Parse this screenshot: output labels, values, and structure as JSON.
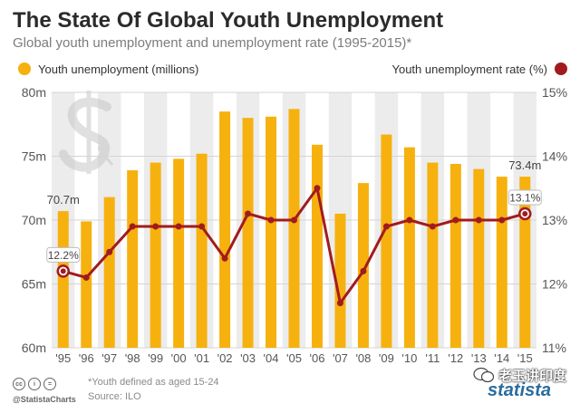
{
  "chart_data": {
    "type": "bar+line",
    "title": "The State Of Global Youth Unemployment",
    "subtitle": "Global youth unemployment and unemployment rate (1995-2015)*",
    "categories": [
      "'95",
      "'96",
      "'97",
      "'98",
      "'99",
      "'00",
      "'01",
      "'02",
      "'03",
      "'04",
      "'05",
      "'06",
      "'07",
      "'08",
      "'09",
      "'10",
      "'11",
      "'12",
      "'13",
      "'14",
      "'15"
    ],
    "series": [
      {
        "name": "Youth unemployment (millions)",
        "type": "bar",
        "axis": "left",
        "color": "#f6b10f",
        "values": [
          70.7,
          69.9,
          71.8,
          73.9,
          74.5,
          74.8,
          75.2,
          78.5,
          78.0,
          78.1,
          78.7,
          75.9,
          70.5,
          72.9,
          76.7,
          75.7,
          74.5,
          74.4,
          74.0,
          73.4,
          73.4
        ]
      },
      {
        "name": "Youth unemployment rate (%)",
        "type": "line",
        "axis": "right",
        "color": "#a11b1e",
        "values": [
          12.2,
          12.1,
          12.5,
          12.9,
          12.9,
          12.9,
          12.9,
          12.4,
          13.1,
          13.0,
          13.0,
          13.5,
          11.7,
          12.2,
          12.9,
          13.0,
          12.9,
          13.0,
          13.0,
          13.0,
          13.1
        ]
      }
    ],
    "ylim_left": [
      60,
      80
    ],
    "ylim_right": [
      11,
      15
    ],
    "yticks_left": [
      60,
      65,
      70,
      75,
      80
    ],
    "yticks_left_labels": [
      "60m",
      "65m",
      "70m",
      "75m",
      "80m"
    ],
    "yticks_right": [
      11,
      12,
      13,
      14,
      15
    ],
    "yticks_right_labels": [
      "11%",
      "12%",
      "13%",
      "14%",
      "15%"
    ],
    "annotations": [
      {
        "series": 0,
        "index": 0,
        "text": "70.7m"
      },
      {
        "series": 0,
        "index": 20,
        "text": "73.4m"
      },
      {
        "series": 1,
        "index": 0,
        "text": "12.2%"
      },
      {
        "series": 1,
        "index": 20,
        "text": "13.1%"
      }
    ],
    "grid": true,
    "alternating_background": true,
    "legend_placement": "top"
  },
  "footer": {
    "note": "*Youth defined as aged 15-24",
    "source": "Source: ILO",
    "handle": "@StatistaCharts",
    "license_icons": [
      "cc",
      "i",
      "="
    ],
    "brand": "statista",
    "watermark": "老玉讲印度"
  },
  "colors": {
    "bar": "#f6b10f",
    "line": "#a11b1e",
    "band": "#ececec",
    "grid": "#d4d4d4",
    "axis_text": "#555555"
  }
}
